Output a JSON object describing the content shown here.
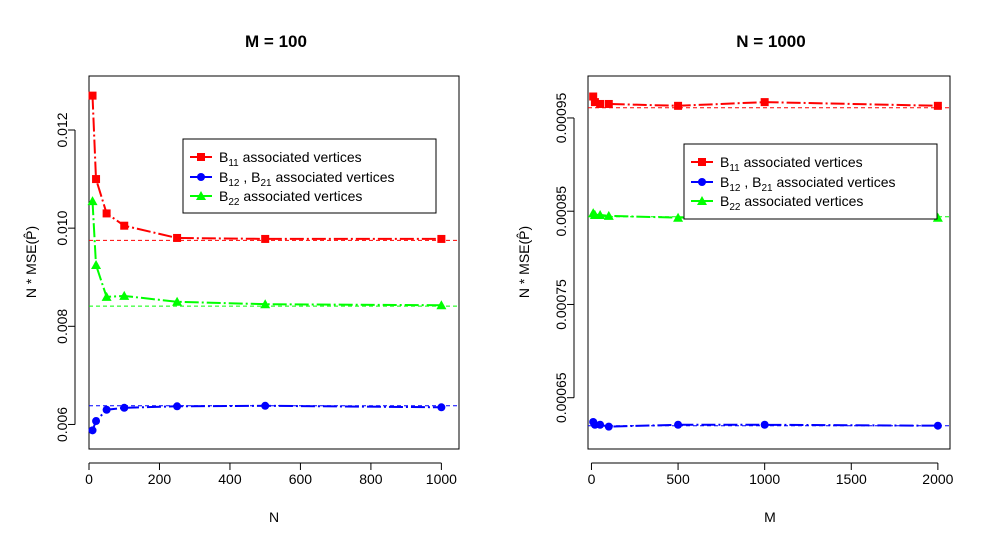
{
  "colors": {
    "B11": "#ff0000",
    "B12": "#0000ff",
    "B22": "#00ff00"
  },
  "chart_data": [
    {
      "type": "line",
      "title": "M = 100",
      "xlabel": "N",
      "ylabel": "N * MSE(P̂)",
      "xlim": [
        0,
        1050
      ],
      "ylim": [
        0.0055,
        0.0131
      ],
      "xticks": [
        0,
        200,
        400,
        600,
        800,
        1000
      ],
      "yticks": [
        0.006,
        0.008,
        0.01,
        0.012
      ],
      "ytick_labels": [
        "0.006",
        "0.008",
        "0.010",
        "0.012"
      ],
      "legend_position": "top-right",
      "series": [
        {
          "key": "B11",
          "marker": "square",
          "x": [
            10,
            20,
            50,
            100,
            250,
            500,
            1000
          ],
          "y": [
            0.0127,
            0.011,
            0.0103,
            0.01005,
            0.0098,
            0.00978,
            0.00978
          ],
          "reference": 0.00975
        },
        {
          "key": "B12",
          "marker": "circle",
          "x": [
            10,
            20,
            50,
            100,
            250,
            500,
            1000
          ],
          "y": [
            0.00588,
            0.00607,
            0.0063,
            0.00634,
            0.00637,
            0.00638,
            0.00635
          ],
          "reference": 0.00638
        },
        {
          "key": "B22",
          "marker": "triangle",
          "x": [
            10,
            20,
            50,
            100,
            250,
            500,
            1000
          ],
          "y": [
            0.01055,
            0.00925,
            0.0086,
            0.00862,
            0.0085,
            0.00845,
            0.00843
          ],
          "reference": 0.00841
        }
      ]
    },
    {
      "type": "line",
      "title": "N = 1000",
      "xlabel": "M",
      "ylabel": "N * MSE(P̂)",
      "xlim": [
        -20,
        2070
      ],
      "ylim": [
        0.000595,
        0.000995
      ],
      "xticks": [
        0,
        500,
        1000,
        1500,
        2000
      ],
      "yticks": [
        0.00065,
        0.00075,
        0.00085,
        0.00095
      ],
      "ytick_labels": [
        "0.00065",
        "0.00075",
        "0.00085",
        "0.00095"
      ],
      "legend_position": "top-right",
      "series": [
        {
          "key": "B11",
          "marker": "square",
          "x": [
            10,
            20,
            50,
            100,
            500,
            1000,
            2000
          ],
          "y": [
            0.000973,
            0.000967,
            0.000965,
            0.000965,
            0.000963,
            0.000967,
            0.000963
          ],
          "reference": 0.000961
        },
        {
          "key": "B12",
          "marker": "circle",
          "x": [
            10,
            20,
            50,
            100,
            500,
            1000,
            2000
          ],
          "y": [
            0.000624,
            0.000621,
            0.000621,
            0.000619,
            0.000621,
            0.000621,
            0.00062
          ],
          "reference": 0.00062
        },
        {
          "key": "B22",
          "marker": "triangle",
          "x": [
            10,
            20,
            50,
            100,
            500,
            1000,
            2000
          ],
          "y": [
            0.000848,
            0.000846,
            0.000846,
            0.000845,
            0.000843,
            0.000846,
            0.000843
          ],
          "reference": 0.000844
        }
      ]
    }
  ],
  "legend": {
    "B11": {
      "main": "B",
      "sub": "11",
      "rest": " associated vertices"
    },
    "B12": {
      "main": "B",
      "sub": "12",
      "mid": " , B",
      "sub2": "21",
      "rest": " associated vertices"
    },
    "B22": {
      "main": "B",
      "sub": "22",
      "rest": " associated vertices"
    }
  }
}
